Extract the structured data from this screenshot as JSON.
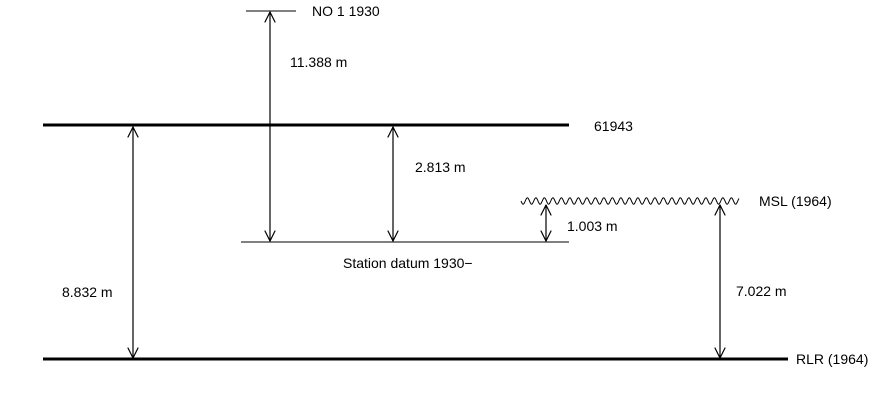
{
  "levels": {
    "no1": "NO 1 1930",
    "benchmark": "61943",
    "msl": "MSL (1964)",
    "station_datum": "Station datum 1930−",
    "rlr": "RLR (1964)"
  },
  "distances": {
    "no1_to_station": "11.388 m",
    "benchmark_to_station": "2.813 m",
    "msl_to_station": "1.003 m",
    "benchmark_to_rlr": "8.832 m",
    "msl_to_rlr": "7.022 m"
  },
  "colors": {
    "line": "#000000",
    "background": "#ffffff"
  }
}
